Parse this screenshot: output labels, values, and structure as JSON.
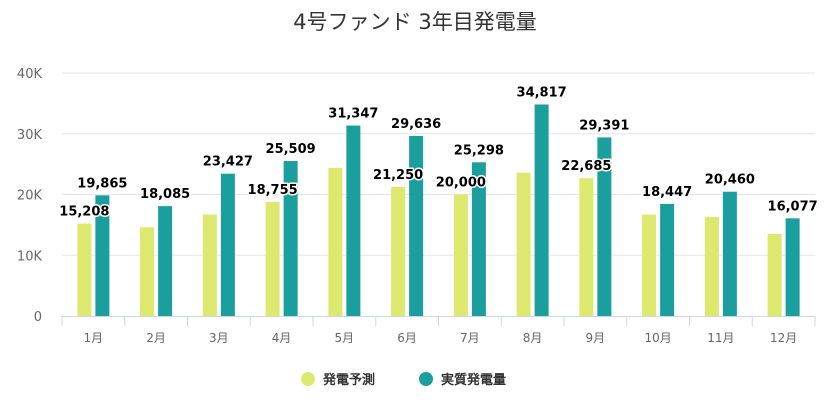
{
  "chart_data": {
    "type": "bar",
    "title": "4号ファンド 3年目発電量",
    "categories": [
      "1月",
      "2月",
      "3月",
      "4月",
      "5月",
      "6月",
      "7月",
      "8月",
      "9月",
      "10月",
      "11月",
      "12月"
    ],
    "series": [
      {
        "name": "発電予測",
        "color": "#dde86f",
        "values": [
          15208,
          14600,
          16700,
          18755,
          24400,
          21250,
          20000,
          23600,
          22685,
          16700,
          16300,
          13500
        ],
        "labels": [
          "15,208",
          "",
          "",
          "18,755",
          "",
          "21,250",
          "20,000",
          "",
          "22,685",
          "",
          "",
          ""
        ]
      },
      {
        "name": "実質発電量",
        "color": "#1a9e9e",
        "values": [
          19865,
          18085,
          23427,
          25509,
          31347,
          29636,
          25298,
          34817,
          29391,
          18447,
          20460,
          16077
        ],
        "labels": [
          "19,865",
          "18,085",
          "23,427",
          "25,509",
          "31,347",
          "29,636",
          "25,298",
          "34,817",
          "29,391",
          "18,447",
          "20,460",
          "16,077"
        ]
      }
    ],
    "yticks": [
      "0",
      "10K",
      "20K",
      "30K",
      "40K"
    ],
    "ylim": [
      0,
      40000
    ],
    "grid": true,
    "legend_position": "bottom-center"
  }
}
